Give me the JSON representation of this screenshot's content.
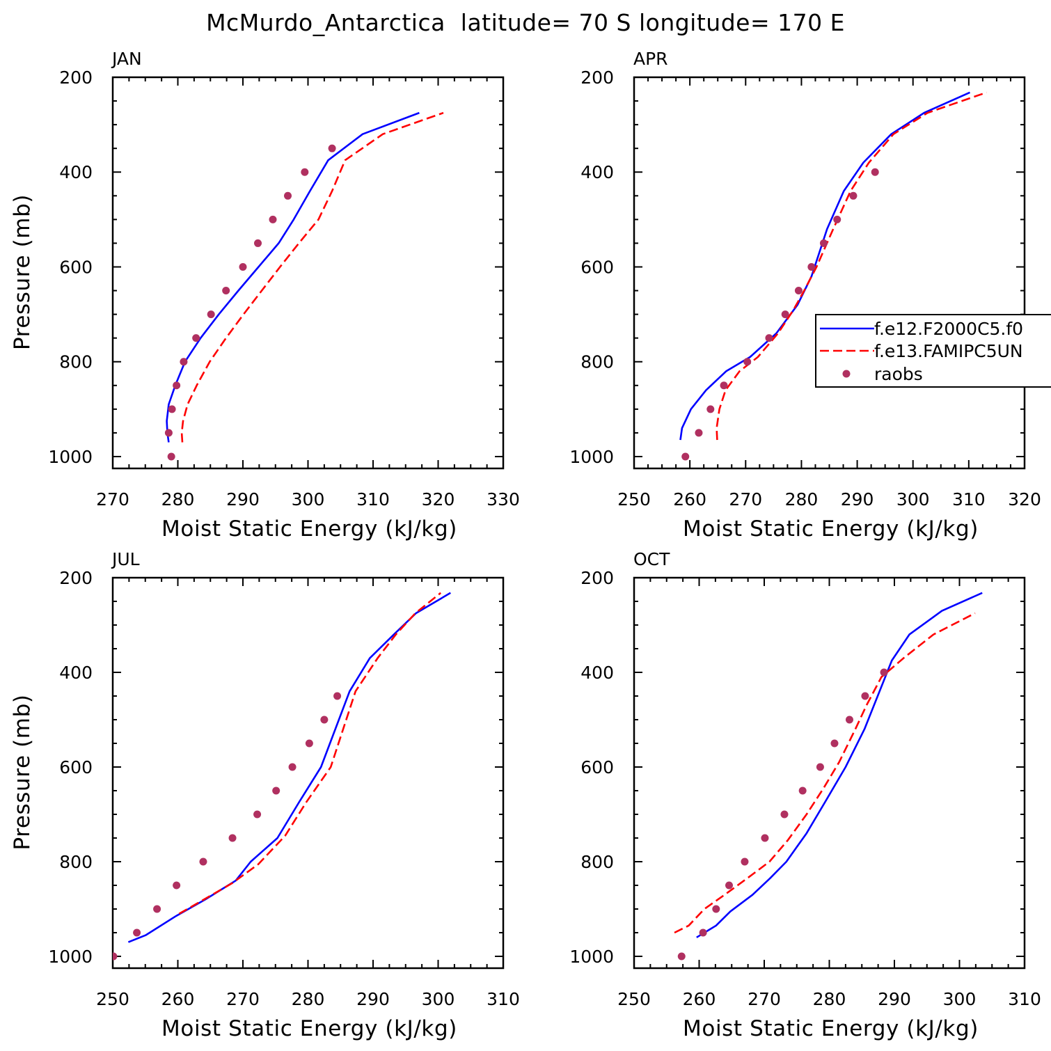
{
  "title": "McMurdo_Antarctica  latitude= 70 S longitude= 170 E",
  "colors": {
    "model1": "#0000ff",
    "model2": "#ff0000",
    "raobs": "#b03060",
    "axis": "#000000"
  },
  "legend": {
    "entries": [
      "f.e12.F2000C5.f0",
      "f.e13.FAMIPC5UN",
      "raobs"
    ]
  },
  "chart_data": [
    {
      "type": "line",
      "panel_label": "JAN",
      "xlabel": "Moist Static Energy (kJ/kg)",
      "ylabel": "Pressure (mb)",
      "xlim": [
        270,
        330
      ],
      "ylim": [
        1025,
        200
      ],
      "xticks": [
        270,
        280,
        290,
        300,
        310,
        320,
        330
      ],
      "yticks": [
        200,
        400,
        600,
        800,
        1000
      ],
      "series": [
        {
          "name": "f.e12.F2000C5.f0",
          "style": "solid",
          "x": [
            278.6,
            278.4,
            278.3,
            278.6,
            279.6,
            281.1,
            283.5,
            286.3,
            289.3,
            292.4,
            295.5,
            297.8,
            300.3,
            303.1,
            308.4,
            317.1
          ],
          "y": [
            970,
            950,
            925,
            890,
            850,
            800,
            750,
            700,
            650,
            600,
            550,
            500,
            440,
            375,
            320,
            275
          ]
        },
        {
          "name": "f.e13.FAMIPC5UN",
          "style": "dashed",
          "x": [
            280.7,
            280.6,
            280.8,
            281.5,
            282.9,
            284.9,
            287.4,
            290.1,
            292.9,
            295.7,
            298.6,
            301.6,
            303.7,
            305.7,
            311.5,
            320.8
          ],
          "y": [
            970,
            950,
            925,
            890,
            850,
            800,
            750,
            700,
            650,
            600,
            550,
            500,
            440,
            375,
            320,
            275
          ]
        },
        {
          "name": "raobs",
          "style": "marker",
          "x": [
            279.0,
            278.6,
            279.1,
            279.8,
            280.9,
            282.8,
            285.1,
            287.4,
            290.0,
            292.3,
            294.6,
            296.9,
            299.5,
            303.7
          ],
          "y": [
            1000,
            950,
            900,
            850,
            800,
            750,
            700,
            650,
            600,
            550,
            500,
            450,
            400,
            350
          ]
        }
      ]
    },
    {
      "type": "line",
      "panel_label": "APR",
      "xlabel": "Moist Static Energy (kJ/kg)",
      "ylabel": "",
      "xlim": [
        250,
        320
      ],
      "ylim": [
        1025,
        200
      ],
      "xticks": [
        250,
        260,
        270,
        280,
        290,
        300,
        310,
        320
      ],
      "yticks": [
        200,
        400,
        600,
        800,
        1000
      ],
      "series": [
        {
          "name": "f.e12.F2000C5.f0",
          "style": "solid",
          "x": [
            258.3,
            258.6,
            260.2,
            262.9,
            266.5,
            270.8,
            275.5,
            279.3,
            281.8,
            284.6,
            287.6,
            291.1,
            296.1,
            302.0,
            310.2
          ],
          "y": [
            965,
            940,
            900,
            860,
            820,
            790,
            740,
            680,
            620,
            520,
            440,
            380,
            320,
            275,
            232
          ]
        },
        {
          "name": "f.e13.FAMIPC5UN",
          "style": "dashed",
          "x": [
            264.9,
            264.8,
            265.3,
            266.4,
            268.9,
            272.2,
            275.8,
            278.6,
            280.5,
            282.7,
            285.7,
            288.8,
            292.1,
            296.5,
            302.6,
            313.2
          ],
          "y": [
            965,
            940,
            900,
            860,
            820,
            790,
            740,
            690,
            650,
            600,
            520,
            440,
            380,
            320,
            275,
            232
          ]
        },
        {
          "name": "raobs",
          "style": "marker",
          "x": [
            259.2,
            261.6,
            263.7,
            266.1,
            270.3,
            274.2,
            277.1,
            279.5,
            281.8,
            284.0,
            286.4,
            289.3,
            293.2
          ],
          "y": [
            1000,
            950,
            900,
            850,
            800,
            750,
            700,
            650,
            600,
            550,
            500,
            450,
            400
          ]
        }
      ]
    },
    {
      "type": "line",
      "panel_label": "JUL",
      "xlabel": "Moist Static Energy (kJ/kg)",
      "ylabel": "Pressure (mb)",
      "xlim": [
        250,
        310
      ],
      "ylim": [
        1025,
        200
      ],
      "xticks": [
        250,
        260,
        270,
        280,
        290,
        300,
        310
      ],
      "yticks": [
        200,
        400,
        600,
        800,
        1000
      ],
      "series": [
        {
          "name": "f.e12.F2000C5.f0",
          "style": "solid",
          "x": [
            252.4,
            255.1,
            259.7,
            264.2,
            268.9,
            271.2,
            275.3,
            278.6,
            282.0,
            286.4,
            289.5,
            293.2,
            296.6,
            301.9
          ],
          "y": [
            970,
            955,
            915,
            880,
            840,
            800,
            750,
            675,
            600,
            440,
            370,
            320,
            275,
            232
          ]
        },
        {
          "name": "f.e13.FAMIPC5UN",
          "style": "dashed",
          "x": [
            260.2,
            264.0,
            268.4,
            272.4,
            276.5,
            279.7,
            283.5,
            287.3,
            290.7,
            293.5,
            296.5,
            300.4
          ],
          "y": [
            910,
            880,
            845,
            805,
            745,
            675,
            600,
            440,
            370,
            320,
            275,
            232
          ]
        },
        {
          "name": "raobs",
          "style": "marker",
          "x": [
            250.1,
            253.7,
            256.8,
            259.8,
            263.9,
            268.4,
            272.2,
            275.1,
            277.6,
            280.2,
            282.5,
            284.5
          ],
          "y": [
            1000,
            950,
            900,
            850,
            800,
            750,
            700,
            650,
            600,
            550,
            500,
            450
          ]
        }
      ]
    },
    {
      "type": "line",
      "panel_label": "OCT",
      "xlabel": "Moist Static Energy (kJ/kg)",
      "ylabel": "",
      "xlim": [
        250,
        310
      ],
      "ylim": [
        1025,
        200
      ],
      "xticks": [
        250,
        260,
        270,
        280,
        290,
        300,
        310
      ],
      "yticks": [
        200,
        400,
        600,
        800,
        1000
      ],
      "series": [
        {
          "name": "f.e12.F2000C5.f0",
          "style": "solid",
          "x": [
            259.6,
            262.6,
            264.8,
            268.2,
            270.9,
            273.4,
            276.5,
            279.3,
            282.5,
            285.4,
            289.6,
            292.3,
            297.3,
            303.5
          ],
          "y": [
            960,
            935,
            905,
            870,
            835,
            800,
            740,
            675,
            600,
            520,
            375,
            320,
            270,
            232
          ]
        },
        {
          "name": "f.e13.FAMIPC5UN",
          "style": "dashed",
          "x": [
            256.2,
            258.4,
            260.8,
            263.9,
            267.4,
            270.8,
            273.6,
            276.5,
            279.1,
            281.5,
            284.0,
            285.7,
            288.0,
            291.4,
            296.0,
            302.4
          ],
          "y": [
            950,
            935,
            900,
            870,
            835,
            800,
            755,
            700,
            645,
            590,
            520,
            470,
            410,
            370,
            320,
            275
          ]
        },
        {
          "name": "raobs",
          "style": "marker",
          "x": [
            257.3,
            260.6,
            262.6,
            264.6,
            267.0,
            270.1,
            273.1,
            275.9,
            278.6,
            280.8,
            283.1,
            285.5,
            288.4
          ],
          "y": [
            1000,
            950,
            900,
            850,
            800,
            750,
            700,
            650,
            600,
            550,
            500,
            450,
            400
          ]
        }
      ]
    }
  ]
}
